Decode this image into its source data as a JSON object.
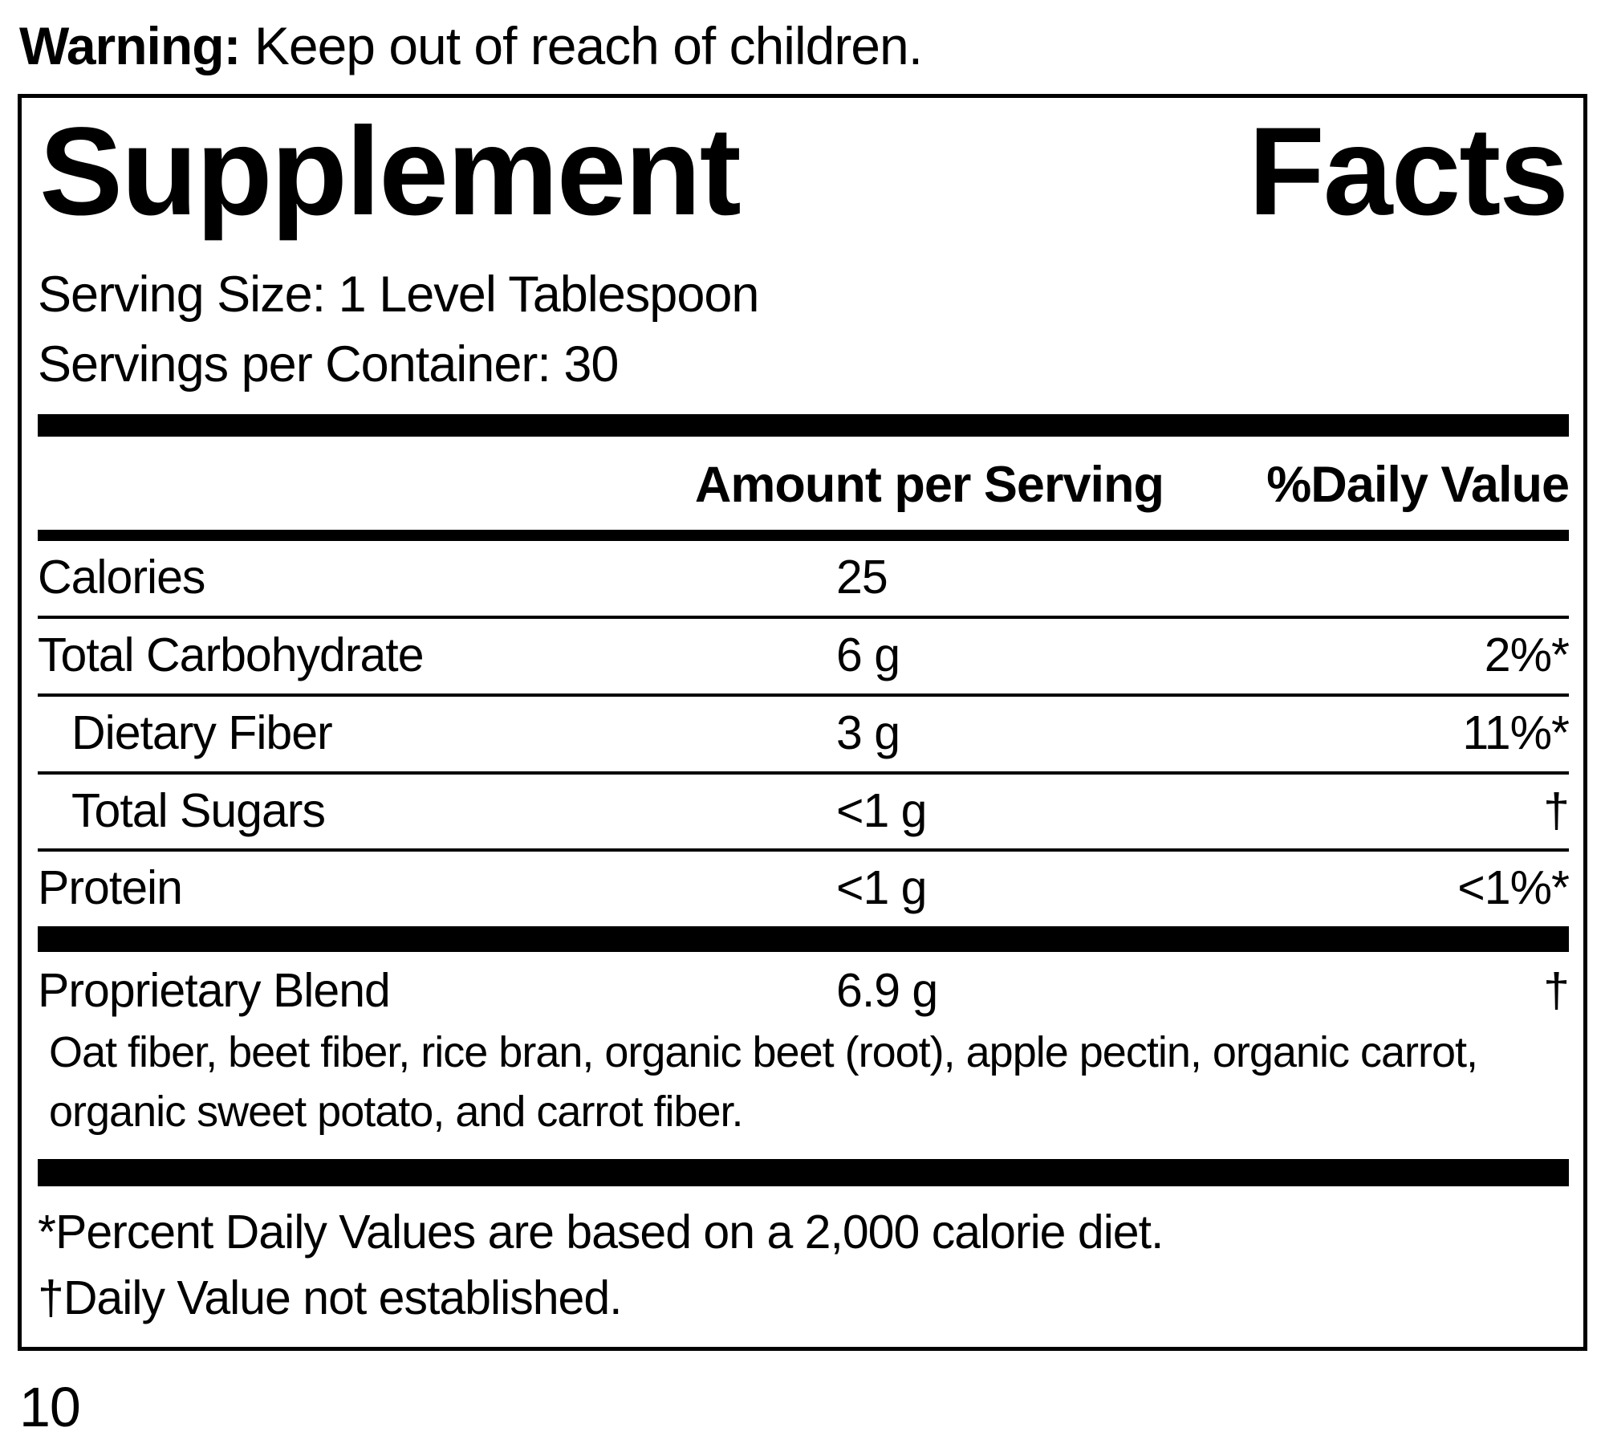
{
  "colors": {
    "text": "#000000",
    "background": "#ffffff"
  },
  "warning": {
    "label": "Warning:",
    "text": " Keep out of reach of children."
  },
  "panel": {
    "title_words": [
      "Supplement",
      "Facts"
    ],
    "serving_size": "Serving Size: 1 Level Tablespoon",
    "servings_per_container": "Servings per Container: 30",
    "columns": {
      "amount": "Amount per Serving",
      "daily_value": "%Daily Value"
    },
    "rows": [
      {
        "label": "Calories",
        "amount": "25",
        "dv": ""
      },
      {
        "label": "Total Carbohydrate",
        "amount": "6 g",
        "dv": "2%*"
      },
      {
        "label": "Dietary Fiber",
        "amount": "3 g",
        "dv": "11%*"
      },
      {
        "label": "Total Sugars",
        "amount": "<1 g",
        "dv": "†"
      },
      {
        "label": "Protein",
        "amount": "<1 g",
        "dv": "<1%*"
      }
    ],
    "proprietary_blend": {
      "label": "Proprietary Blend",
      "amount": "6.9 g",
      "dv": "†",
      "ingredients": "Oat fiber, beet fiber, rice bran, organic beet (root), apple pectin, organic carrot, organic sweet potato, and carrot fiber."
    },
    "footnotes": {
      "percent_daily": "*Percent Daily Values are based on a 2,000 calorie diet.",
      "daily_value": "†Daily Value not established."
    }
  },
  "page_number": "10"
}
